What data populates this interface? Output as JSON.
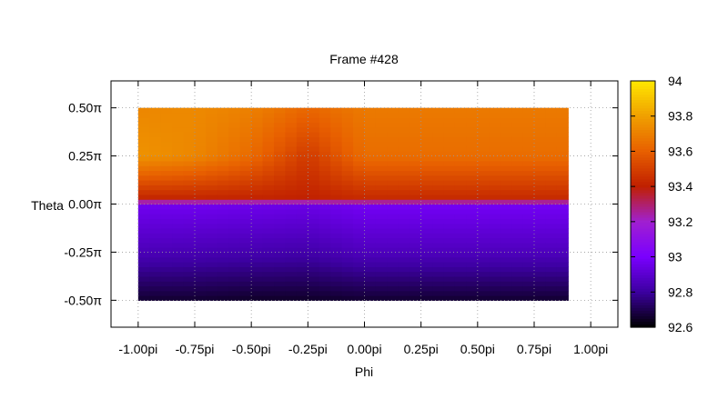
{
  "chart_data": {
    "type": "heatmap",
    "title": "Frame #428",
    "xlabel": "Phi",
    "ylabel": "Theta",
    "x_ticks": [
      "-1.00pi",
      "-0.75pi",
      "-0.50pi",
      "-0.25pi",
      "0.00pi",
      "0.25pi",
      "0.50pi",
      "0.75pi",
      "1.00pi"
    ],
    "x_tick_values": [
      -1.0,
      -0.75,
      -0.5,
      -0.25,
      0.0,
      0.25,
      0.5,
      0.75,
      1.0
    ],
    "y_ticks": [
      "0.50π",
      "0.25π",
      "0.00π",
      "-0.25π",
      "-0.50π"
    ],
    "y_tick_values": [
      0.5,
      0.25,
      0.0,
      -0.25,
      -0.5
    ],
    "xlim": [
      -1.12,
      1.12
    ],
    "ylim": [
      -0.64,
      0.64
    ],
    "data_extent": {
      "phi": [
        -1.0,
        0.9
      ],
      "theta": [
        -0.5,
        0.5
      ]
    },
    "colorbar": {
      "range": [
        92.6,
        94.0
      ],
      "ticks": [
        "94",
        "93.8",
        "93.6",
        "93.4",
        "93.2",
        "93",
        "92.8",
        "92.6"
      ],
      "tick_values": [
        94.0,
        93.8,
        93.6,
        93.4,
        93.2,
        93.0,
        92.8,
        92.6
      ],
      "palette": [
        "#000000",
        "#3c00a0",
        "#7a00ff",
        "#a020d0",
        "#c02000",
        "#e86000",
        "#f0a000",
        "#ffe800"
      ]
    },
    "grid": true,
    "rows": [
      {
        "theta": 0.5,
        "values": [
          93.72,
          93.73,
          93.7,
          93.62,
          93.68,
          93.68,
          93.68,
          93.68
        ]
      },
      {
        "theta": 0.25,
        "values": [
          93.76,
          93.72,
          93.63,
          93.48,
          93.64,
          93.64,
          93.64,
          93.64
        ]
      },
      {
        "theta": 0.02,
        "values": [
          93.4,
          93.4,
          93.4,
          93.4,
          93.42,
          93.42,
          93.42,
          93.42
        ]
      },
      {
        "theta": 0.0,
        "values": [
          92.97,
          92.97,
          92.96,
          92.95,
          92.98,
          92.98,
          92.98,
          92.98
        ]
      },
      {
        "theta": -0.25,
        "values": [
          92.85,
          92.84,
          92.83,
          92.82,
          92.86,
          92.86,
          92.86,
          92.86
        ]
      },
      {
        "theta": -0.5,
        "values": [
          92.66,
          92.66,
          92.65,
          92.65,
          92.66,
          92.66,
          92.66,
          92.66
        ]
      }
    ],
    "row_phi": [
      -1.0,
      -0.75,
      -0.5,
      -0.25,
      0.0,
      0.25,
      0.5,
      0.9
    ]
  }
}
